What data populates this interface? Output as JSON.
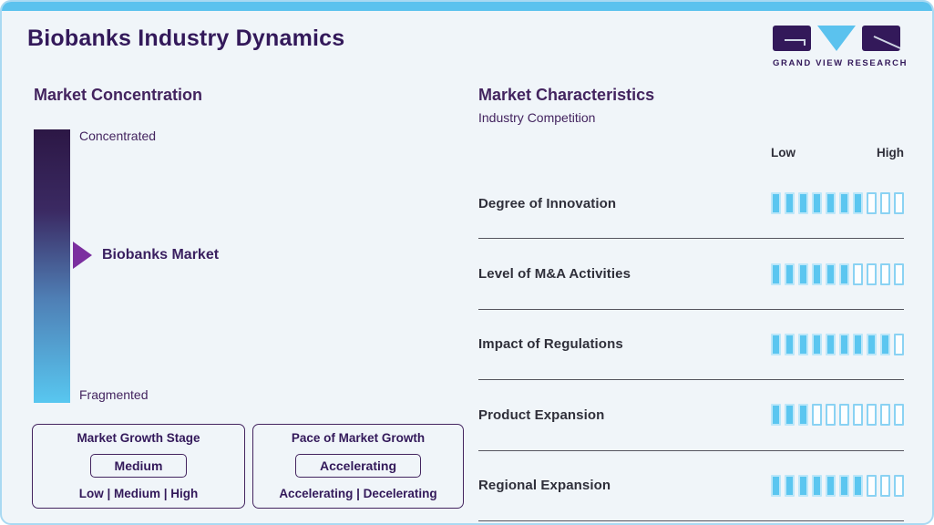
{
  "page": {
    "title": "Biobanks Industry Dynamics"
  },
  "logo": {
    "text": "GRAND VIEW RESEARCH"
  },
  "market_concentration": {
    "title": "Market Concentration",
    "top_label": "Concentrated",
    "bottom_label": "Fragmented",
    "marker_label": "Biobanks Market",
    "marker_position_pct": 46
  },
  "growth_stage_box": {
    "title": "Market Growth Stage",
    "value": "Medium",
    "options": "Low | Medium | High"
  },
  "pace_box": {
    "title": "Pace of Market Growth",
    "value": "Accelerating",
    "options": "Accelerating | Decelerating"
  },
  "market_characteristics": {
    "title": "Market Characteristics",
    "subtitle": "Industry Competition",
    "scale_low": "Low",
    "scale_high": "High",
    "rows": [
      {
        "label": "Degree of Innovation",
        "filled": 7,
        "total": 10
      },
      {
        "label": "Level of M&A Activities",
        "filled": 6,
        "total": 10
      },
      {
        "label": "Impact of Regulations",
        "filled": 9,
        "total": 10
      },
      {
        "label": "Product Expansion",
        "filled": 3,
        "total": 10
      },
      {
        "label": "Regional Expansion",
        "filled": 7,
        "total": 10
      }
    ]
  },
  "colors": {
    "accent_cyan": "#5bc2ee",
    "brand_purple": "#33195a",
    "marker_purple": "#7b2f9f",
    "bar_filled": "#5bc6f0",
    "bar_empty_border": "#8ad2f3",
    "gradient_top": "#2c1745",
    "gradient_bottom": "#58c7f0",
    "card_background": "#f0f5f9",
    "card_border": "#a9d9f2"
  },
  "chart_data": {
    "type": "bar",
    "title": "Biobanks Industry Dynamics - Market Characteristics (Industry Competition)",
    "categories": [
      "Degree of Innovation",
      "Level of M&A Activities",
      "Impact of Regulations",
      "Product Expansion",
      "Regional Expansion"
    ],
    "values": [
      7,
      6,
      9,
      3,
      7
    ],
    "ylim": [
      0,
      10
    ],
    "scale_labels": [
      "Low",
      "High"
    ],
    "annotations": {
      "market_concentration_scale": [
        "Concentrated",
        "Fragmented"
      ],
      "market_concentration_marker": "Biobanks Market (upper-middle of scale)",
      "market_growth_stage": "Medium",
      "pace_of_market_growth": "Accelerating"
    }
  }
}
